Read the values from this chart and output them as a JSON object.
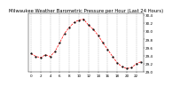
{
  "title": "Milwaukee Weather Barometric Pressure per Hour (Last 24 Hours)",
  "x_values": [
    0,
    1,
    2,
    3,
    4,
    5,
    6,
    7,
    8,
    9,
    10,
    11,
    12,
    13,
    14,
    15,
    16,
    17,
    18,
    19,
    20,
    21,
    22,
    23
  ],
  "y_values": [
    29.45,
    29.38,
    29.35,
    29.42,
    29.38,
    29.5,
    29.72,
    29.95,
    30.1,
    30.22,
    30.28,
    30.3,
    30.15,
    30.05,
    29.9,
    29.72,
    29.55,
    29.38,
    29.22,
    29.12,
    29.08,
    29.1,
    29.2,
    29.25
  ],
  "line_color": "#ff0000",
  "marker_color": "#000000",
  "bg_color": "#ffffff",
  "grid_color": "#aaaaaa",
  "ylim_min": 29.0,
  "ylim_max": 30.45,
  "title_fontsize": 3.8,
  "tick_fontsize": 3.0,
  "ytick_values": [
    29.0,
    29.2,
    29.4,
    29.6,
    29.8,
    30.0,
    30.2,
    30.4
  ],
  "xtick_values": [
    0,
    2,
    4,
    6,
    8,
    10,
    12,
    14,
    16,
    18,
    20,
    22
  ]
}
